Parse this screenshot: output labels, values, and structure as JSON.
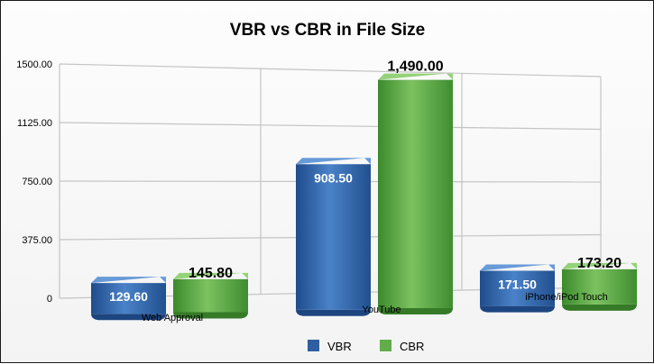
{
  "chart_data": {
    "type": "bar",
    "title": "VBR vs CBR in File Size",
    "categories": [
      "Web Approval",
      "YouTube",
      "iPhone/iPod Touch"
    ],
    "series": [
      {
        "name": "VBR",
        "values": [
          129.6,
          908.5,
          171.5
        ],
        "labels": [
          "129.60",
          "908.50",
          "171.50"
        ],
        "color": "#2f5fa0"
      },
      {
        "name": "CBR",
        "values": [
          145.8,
          1490.0,
          173.2
        ],
        "labels": [
          "145.80",
          "1,490.00",
          "173.20"
        ],
        "color": "#4e9a3c"
      }
    ],
    "yticks": [
      0,
      375,
      750,
      1125,
      1500
    ],
    "ytick_labels": [
      "0",
      "375.00",
      "750.00",
      "1125.00",
      "1500.00"
    ],
    "ylim": [
      0,
      1500
    ],
    "grid": true,
    "legend": "bottom"
  }
}
